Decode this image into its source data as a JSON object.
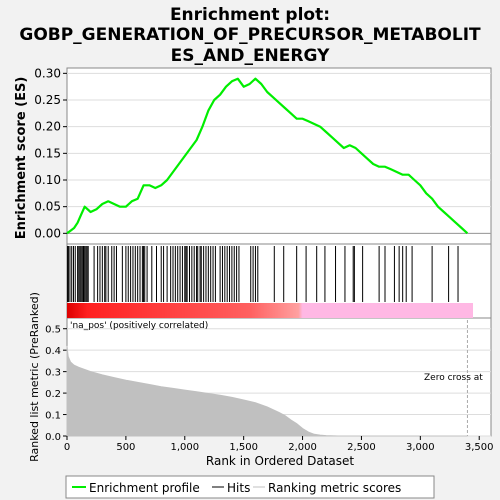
{
  "chart_data": {
    "type": "line",
    "title_lines": [
      "Enrichment plot:",
      "GOBP_GENERATION_OF_PRECURSOR_METABOLIT",
      "ES_AND_ENERGY"
    ],
    "top_panel": {
      "ylabel": "Enrichment score (ES)",
      "ylim": [
        -0.02,
        0.31
      ],
      "yticks": [
        "0.00",
        "0.05",
        "0.10",
        "0.15",
        "0.20",
        "0.25",
        "0.30"
      ],
      "ytick_values": [
        0,
        0.05,
        0.1,
        0.15,
        0.2,
        0.25,
        0.3
      ],
      "series": [
        {
          "name": "Enrichment profile",
          "color": "#00ee00",
          "x": [
            0,
            30,
            60,
            90,
            120,
            150,
            200,
            250,
            300,
            350,
            400,
            450,
            500,
            550,
            600,
            650,
            700,
            750,
            800,
            850,
            900,
            950,
            1000,
            1050,
            1100,
            1150,
            1200,
            1250,
            1300,
            1350,
            1400,
            1450,
            1500,
            1550,
            1600,
            1650,
            1700,
            1750,
            1800,
            1850,
            1900,
            1950,
            2000,
            2050,
            2100,
            2150,
            2200,
            2250,
            2300,
            2350,
            2400,
            2450,
            2500,
            2550,
            2600,
            2650,
            2700,
            2750,
            2800,
            2850,
            2900,
            2950,
            3000,
            3050,
            3100,
            3150,
            3200,
            3250,
            3300,
            3350,
            3400
          ],
          "y": [
            0.0,
            0.005,
            0.01,
            0.02,
            0.035,
            0.05,
            0.04,
            0.045,
            0.055,
            0.06,
            0.055,
            0.05,
            0.05,
            0.06,
            0.065,
            0.09,
            0.09,
            0.085,
            0.09,
            0.1,
            0.115,
            0.13,
            0.145,
            0.16,
            0.175,
            0.2,
            0.23,
            0.25,
            0.26,
            0.275,
            0.285,
            0.29,
            0.275,
            0.28,
            0.29,
            0.28,
            0.265,
            0.255,
            0.245,
            0.235,
            0.225,
            0.215,
            0.215,
            0.21,
            0.205,
            0.2,
            0.19,
            0.18,
            0.17,
            0.16,
            0.165,
            0.16,
            0.15,
            0.14,
            0.13,
            0.125,
            0.125,
            0.12,
            0.115,
            0.11,
            0.11,
            0.1,
            0.09,
            0.075,
            0.065,
            0.05,
            0.04,
            0.03,
            0.02,
            0.01,
            0.0
          ]
        }
      ]
    },
    "hits_panel": {
      "hit_positions": [
        5,
        12,
        25,
        40,
        55,
        70,
        90,
        100,
        110,
        120,
        130,
        140,
        150,
        160,
        170,
        180,
        230,
        260,
        280,
        300,
        320,
        330,
        350,
        380,
        400,
        420,
        470,
        500,
        520,
        540,
        560,
        580,
        600,
        620,
        640,
        650,
        660,
        680,
        720,
        760,
        800,
        820,
        850,
        880,
        900,
        920,
        940,
        960,
        980,
        1000,
        1010,
        1020,
        1040,
        1060,
        1080,
        1100,
        1110,
        1130,
        1140,
        1160,
        1180,
        1200,
        1220,
        1240,
        1260,
        1300,
        1320,
        1340,
        1360,
        1380,
        1400,
        1420,
        1440,
        1460,
        1560,
        1580,
        1600,
        1620,
        1760,
        1840,
        1950,
        2030,
        2120,
        2190,
        2280,
        2360,
        2430,
        2440,
        2510,
        2650,
        2700,
        2780,
        2820,
        2850,
        2880,
        2930,
        3100,
        3240,
        3320
      ]
    },
    "bottom_panel": {
      "xlabel": "Rank in Ordered Dataset",
      "ylabel": "Ranked list metric (PreRanked)",
      "ylim": [
        0,
        0.55
      ],
      "yticks": [
        "0.0",
        "0.1",
        "0.2",
        "0.3",
        "0.4",
        "0.5"
      ],
      "ytick_values": [
        0,
        0.1,
        0.2,
        0.3,
        0.4,
        0.5
      ],
      "xlim": [
        0,
        3600
      ],
      "xticks": [
        "0",
        "500",
        "1,000",
        "1,500",
        "2,000",
        "2,500",
        "3,000",
        "3,500"
      ],
      "xtick_values": [
        0,
        500,
        1000,
        1500,
        2000,
        2500,
        3000,
        3500
      ],
      "metric": {
        "x": [
          0,
          10,
          30,
          60,
          100,
          150,
          200,
          300,
          400,
          500,
          600,
          700,
          800,
          900,
          1000,
          1100,
          1200,
          1300,
          1400,
          1500,
          1600,
          1700,
          1800,
          1850,
          1900,
          1950,
          2000,
          2050,
          2100,
          2150,
          2200,
          2300,
          2500,
          3000,
          3400
        ],
        "y": [
          0.42,
          0.37,
          0.345,
          0.33,
          0.32,
          0.31,
          0.3,
          0.285,
          0.272,
          0.26,
          0.25,
          0.24,
          0.23,
          0.222,
          0.214,
          0.206,
          0.198,
          0.19,
          0.18,
          0.168,
          0.155,
          0.135,
          0.11,
          0.095,
          0.075,
          0.058,
          0.035,
          0.018,
          0.008,
          0.004,
          0.002,
          0.0,
          0.0,
          0.0,
          0.0
        ],
        "color": "#c0c0c0"
      },
      "annotations": {
        "positive_label": "'na_pos' (positively correlated)",
        "zero_cross_label": "Zero cross at",
        "zero_cross_rank": 3400
      }
    },
    "legend": {
      "placement": "bottom",
      "entries": [
        {
          "label": "Enrichment profile",
          "color": "#00ee00"
        },
        {
          "label": "Hits",
          "color": "#000000"
        },
        {
          "label": "Ranking metric scores",
          "color": "#c0c0c0"
        }
      ]
    },
    "colors": {
      "heatmap_red": "#ff0000",
      "heatmap_pink": "#ffb0dc",
      "positive_label": "#cc0000"
    }
  }
}
